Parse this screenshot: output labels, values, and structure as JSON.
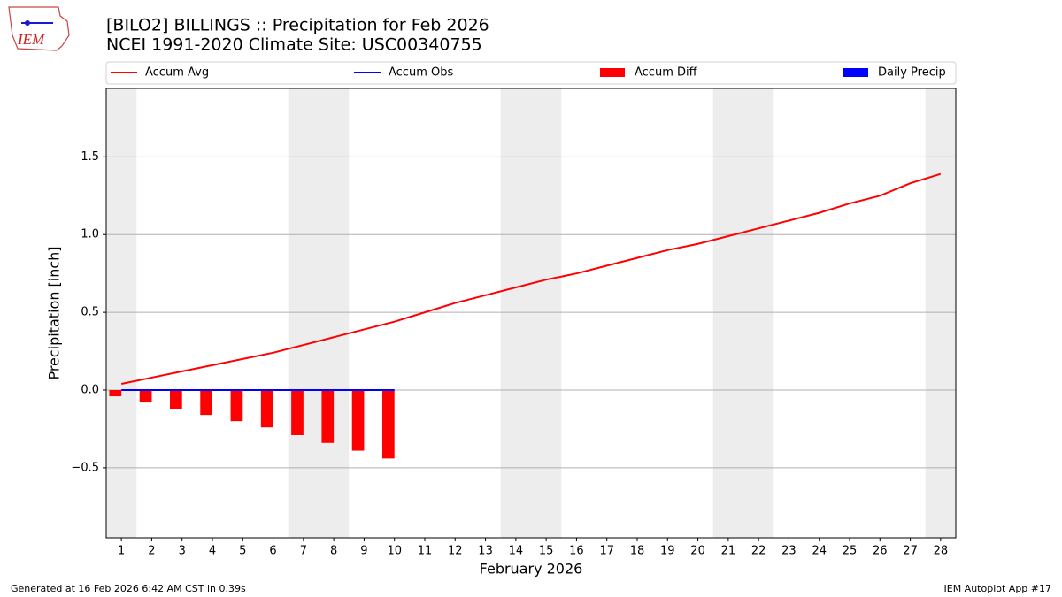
{
  "chart_data": {
    "type": "combo",
    "title": "[BILO2] BILLINGS :: Precipitation for Feb 2026",
    "subtitle": "NCEI 1991-2020 Climate Site: USC00340755",
    "xlabel": "February 2026",
    "ylabel": "Precipitation [inch]",
    "logo": "IEM",
    "footer_left": "Generated at 16 Feb 2026 6:42 AM CST in 0.39s",
    "footer_right": "IEM Autoplot App #17",
    "x": [
      1,
      2,
      3,
      4,
      5,
      6,
      7,
      8,
      9,
      10,
      11,
      12,
      13,
      14,
      15,
      16,
      17,
      18,
      19,
      20,
      21,
      22,
      23,
      24,
      25,
      26,
      27,
      28
    ],
    "xlim": [
      0.5,
      28.5
    ],
    "xticks": [
      1,
      2,
      3,
      4,
      5,
      6,
      7,
      8,
      9,
      10,
      11,
      12,
      13,
      14,
      15,
      16,
      17,
      18,
      19,
      20,
      21,
      22,
      23,
      24,
      25,
      26,
      27,
      28
    ],
    "ylim": [
      -0.95,
      1.94
    ],
    "yticks": [
      {
        "value": -0.5,
        "label": "−0.5"
      },
      {
        "value": 0,
        "label": "0.0"
      },
      0.5,
      {
        "value": 1,
        "label": "1.0"
      },
      1.5
    ],
    "grid": true,
    "series": [
      {
        "name": "Accum Avg",
        "type": "line",
        "color": "#ff0000",
        "values": [
          0.04,
          0.08,
          0.12,
          0.16,
          0.2,
          0.24,
          0.29,
          0.34,
          0.39,
          0.44,
          0.5,
          0.56,
          0.61,
          0.66,
          0.71,
          0.75,
          0.8,
          0.85,
          0.9,
          0.94,
          0.99,
          1.04,
          1.09,
          1.14,
          1.2,
          1.25,
          1.33,
          1.39
        ]
      },
      {
        "name": "Accum Obs",
        "type": "line",
        "color": "#0000ff",
        "values": [
          0,
          0,
          0,
          0,
          0,
          0,
          0,
          0,
          0,
          0,
          null,
          null,
          null,
          null,
          null,
          null,
          null,
          null,
          null,
          null,
          null,
          null,
          null,
          null,
          null,
          null,
          null,
          null
        ]
      },
      {
        "name": "Accum Diff",
        "type": "bar",
        "color": "#ff0000",
        "values": [
          -0.04,
          -0.08,
          -0.12,
          -0.16,
          -0.2,
          -0.24,
          -0.29,
          -0.34,
          -0.39,
          -0.44,
          null,
          null,
          null,
          null,
          null,
          null,
          null,
          null,
          null,
          null,
          null,
          null,
          null,
          null,
          null,
          null,
          null,
          null
        ]
      },
      {
        "name": "Daily Precip",
        "type": "bar",
        "color": "#0000ff",
        "values": [
          0,
          0,
          0,
          0,
          0,
          0,
          0,
          0,
          0,
          0,
          null,
          null,
          null,
          null,
          null,
          null,
          null,
          null,
          null,
          null,
          null,
          null,
          null,
          null,
          null,
          null,
          null,
          null
        ]
      }
    ]
  }
}
